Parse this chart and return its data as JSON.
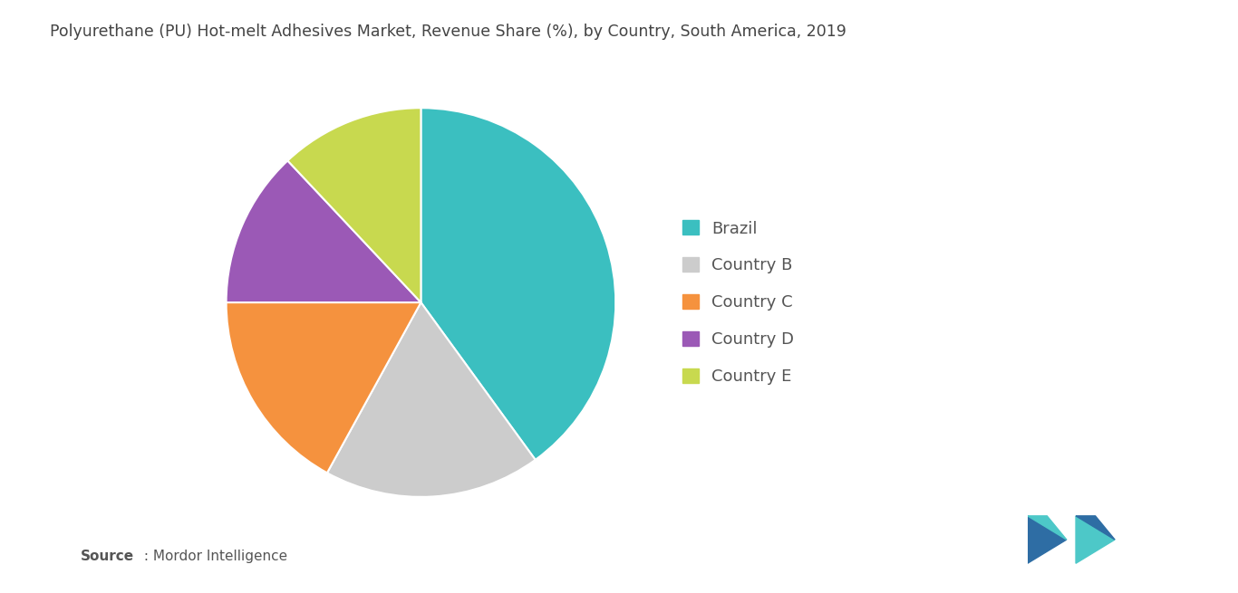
{
  "title": "Polyurethane (PU) Hot-melt Adhesives Market, Revenue Share (%), by Country, South America, 2019",
  "labels": [
    "Brazil",
    "Country B",
    "Country C",
    "Country D",
    "Country E"
  ],
  "values": [
    40,
    18,
    17,
    13,
    12
  ],
  "colors": [
    "#3bbfc0",
    "#cccccc",
    "#f5923e",
    "#9b59b6",
    "#c8d94f"
  ],
  "source_bold": "Source",
  "source_rest": " : Mordor Intelligence",
  "background_color": "#ffffff",
  "title_fontsize": 12.5,
  "legend_fontsize": 13,
  "source_fontsize": 11
}
